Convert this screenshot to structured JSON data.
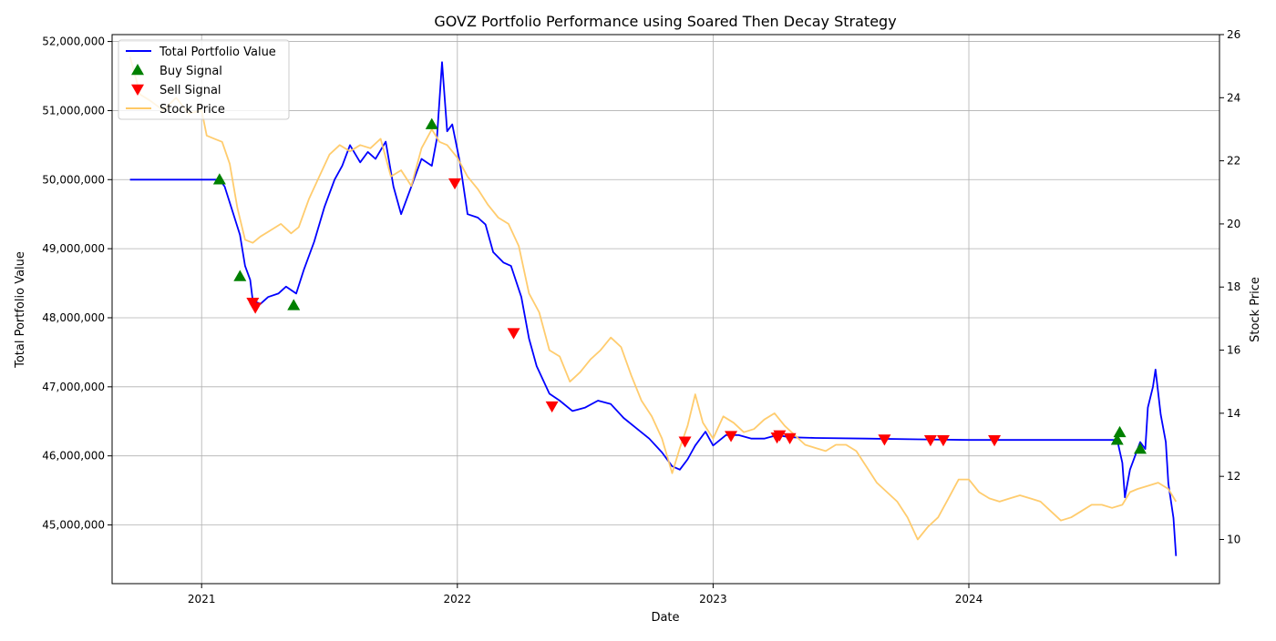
{
  "chart_data": {
    "type": "line",
    "title": "GOVZ Portfolio Performance using Soared Then Decay Strategy",
    "xlabel": "Date",
    "ylabel": "Total Portfolio Value",
    "y2label": "Stock Price",
    "xlim": [
      2020.65,
      2024.98
    ],
    "ylim": [
      44150000,
      52100000
    ],
    "y2lim": [
      8.6,
      26.0
    ],
    "x_ticks": [
      2021,
      2022,
      2023,
      2024
    ],
    "x_tick_labels": [
      "2021",
      "2022",
      "2023",
      "2024"
    ],
    "y_ticks": [
      45000000,
      46000000,
      47000000,
      48000000,
      49000000,
      50000000,
      51000000,
      52000000
    ],
    "y_tick_labels": [
      "45,000,000",
      "46,000,000",
      "47,000,000",
      "48,000,000",
      "49,000,000",
      "50,000,000",
      "51,000,000",
      "52,000,000"
    ],
    "y2_ticks": [
      10,
      12,
      14,
      16,
      18,
      20,
      22,
      24,
      26
    ],
    "y2_tick_labels": [
      "10",
      "12",
      "14",
      "16",
      "18",
      "20",
      "22",
      "24",
      "26"
    ],
    "grid": true,
    "legend_position": "top-left",
    "legend": [
      {
        "label": "Total Portfolio Value",
        "kind": "line",
        "color": "#0000ff"
      },
      {
        "label": "Buy Signal",
        "kind": "triangle-up",
        "color": "#008000"
      },
      {
        "label": "Sell Signal",
        "kind": "triangle-down",
        "color": "#ff0000"
      },
      {
        "label": "Stock Price",
        "kind": "line",
        "color": "#ffc966"
      }
    ],
    "colors": {
      "portfolio": "#0000ff",
      "stock": "#ffc966",
      "buy": "#008000",
      "sell": "#ff0000"
    },
    "series": [
      {
        "name": "Total Portfolio Value",
        "axis": "left",
        "x": [
          2020.72,
          2020.9,
          2021.05,
          2021.07,
          2021.09,
          2021.12,
          2021.15,
          2021.17,
          2021.19,
          2021.2,
          2021.23,
          2021.26,
          2021.3,
          2021.33,
          2021.37,
          2021.4,
          2021.44,
          2021.48,
          2021.52,
          2021.55,
          2021.58,
          2021.62,
          2021.65,
          2021.68,
          2021.72,
          2021.75,
          2021.78,
          2021.82,
          2021.86,
          2021.9,
          2021.92,
          2021.94,
          2021.96,
          2021.98,
          2022.01,
          2022.04,
          2022.08,
          2022.11,
          2022.14,
          2022.18,
          2022.21,
          2022.25,
          2022.28,
          2022.31,
          2022.36,
          2022.4,
          2022.45,
          2022.5,
          2022.55,
          2022.6,
          2022.65,
          2022.7,
          2022.75,
          2022.8,
          2022.84,
          2022.87,
          2022.9,
          2022.93,
          2022.97,
          2023.0,
          2023.05,
          2023.1,
          2023.15,
          2023.2,
          2023.25,
          2023.3,
          2023.4,
          2023.6,
          2023.8,
          2024.0,
          2024.3,
          2024.58,
          2024.6,
          2024.61,
          2024.63,
          2024.65,
          2024.67,
          2024.69,
          2024.7,
          2024.72,
          2024.73,
          2024.75,
          2024.77,
          2024.78,
          2024.8,
          2024.81
        ],
        "values": [
          50000000,
          50000000,
          50000000,
          50000000,
          49900000,
          49550000,
          49200000,
          48750000,
          48550000,
          48250000,
          48200000,
          48300000,
          48350000,
          48450000,
          48350000,
          48700000,
          49100000,
          49600000,
          50000000,
          50200000,
          50500000,
          50250000,
          50400000,
          50300000,
          50550000,
          49900000,
          49500000,
          49900000,
          50300000,
          50200000,
          50600000,
          51700000,
          50700000,
          50800000,
          50250000,
          49500000,
          49450000,
          49350000,
          48950000,
          48800000,
          48750000,
          48300000,
          47700000,
          47300000,
          46900000,
          46800000,
          46650000,
          46700000,
          46800000,
          46750000,
          46550000,
          46400000,
          46250000,
          46050000,
          45850000,
          45800000,
          45950000,
          46150000,
          46350000,
          46150000,
          46300000,
          46300000,
          46250000,
          46250000,
          46300000,
          46270000,
          46260000,
          46250000,
          46240000,
          46230000,
          46230000,
          46230000,
          45900000,
          45400000,
          45800000,
          46000000,
          46200000,
          46100000,
          46700000,
          47000000,
          47250000,
          46600000,
          46200000,
          45600000,
          45100000,
          44550000
        ]
      },
      {
        "name": "Stock Price",
        "axis": "right",
        "x": [
          2020.72,
          2020.76,
          2020.8,
          2020.85,
          2020.9,
          2020.95,
          2021.0,
          2021.02,
          2021.05,
          2021.08,
          2021.11,
          2021.14,
          2021.17,
          2021.2,
          2021.23,
          2021.27,
          2021.31,
          2021.35,
          2021.38,
          2021.42,
          2021.46,
          2021.5,
          2021.54,
          2021.58,
          2021.62,
          2021.66,
          2021.7,
          2021.74,
          2021.78,
          2021.82,
          2021.86,
          2021.9,
          2021.93,
          2021.96,
          2022.0,
          2022.04,
          2022.08,
          2022.12,
          2022.16,
          2022.2,
          2022.24,
          2022.28,
          2022.32,
          2022.36,
          2022.4,
          2022.44,
          2022.48,
          2022.52,
          2022.56,
          2022.6,
          2022.64,
          2022.68,
          2022.72,
          2022.76,
          2022.8,
          2022.84,
          2022.87,
          2022.9,
          2022.93,
          2022.96,
          2023.0,
          2023.04,
          2023.08,
          2023.12,
          2023.16,
          2023.2,
          2023.24,
          2023.28,
          2023.32,
          2023.36,
          2023.4,
          2023.44,
          2023.48,
          2023.52,
          2023.56,
          2023.6,
          2023.64,
          2023.68,
          2023.72,
          2023.76,
          2023.8,
          2023.84,
          2023.88,
          2023.92,
          2023.96,
          2024.0,
          2024.04,
          2024.08,
          2024.12,
          2024.16,
          2024.2,
          2024.24,
          2024.28,
          2024.32,
          2024.36,
          2024.4,
          2024.44,
          2024.48,
          2024.52,
          2024.56,
          2024.6,
          2024.63,
          2024.66,
          2024.7,
          2024.74,
          2024.78,
          2024.81
        ],
        "values": [
          25.3,
          24.1,
          23.9,
          23.6,
          24.0,
          23.5,
          23.6,
          22.8,
          22.7,
          22.6,
          21.9,
          20.5,
          19.5,
          19.4,
          19.6,
          19.8,
          20.0,
          19.7,
          19.9,
          20.8,
          21.5,
          22.2,
          22.5,
          22.3,
          22.5,
          22.4,
          22.7,
          21.5,
          21.7,
          21.2,
          22.4,
          23.0,
          22.6,
          22.5,
          22.1,
          21.5,
          21.1,
          20.6,
          20.2,
          20.0,
          19.3,
          17.8,
          17.2,
          16.0,
          15.8,
          15.0,
          15.3,
          15.7,
          16.0,
          16.4,
          16.1,
          15.2,
          14.4,
          13.9,
          13.2,
          12.1,
          12.9,
          13.6,
          14.6,
          13.7,
          13.2,
          13.9,
          13.7,
          13.4,
          13.5,
          13.8,
          14.0,
          13.6,
          13.3,
          13.0,
          12.9,
          12.8,
          13.0,
          13.0,
          12.8,
          12.3,
          11.8,
          11.5,
          11.2,
          10.7,
          10.0,
          10.4,
          10.7,
          11.3,
          11.9,
          11.9,
          11.5,
          11.3,
          11.2,
          11.3,
          11.4,
          11.3,
          11.2,
          10.9,
          10.6,
          10.7,
          10.9,
          11.1,
          11.1,
          11.0,
          11.1,
          11.5,
          11.6,
          11.7,
          11.8,
          11.6,
          11.2
        ]
      }
    ],
    "buy_signals": [
      {
        "x": 2021.07,
        "y": 50000000
      },
      {
        "x": 2021.15,
        "y": 48600000
      },
      {
        "x": 2021.36,
        "y": 48180000
      },
      {
        "x": 2021.9,
        "y": 50800000
      },
      {
        "x": 2024.58,
        "y": 46230000
      },
      {
        "x": 2024.59,
        "y": 46340000
      },
      {
        "x": 2024.67,
        "y": 46100000
      }
    ],
    "sell_signals": [
      {
        "x": 2021.2,
        "y": 48220000
      },
      {
        "x": 2021.21,
        "y": 48150000
      },
      {
        "x": 2021.99,
        "y": 49950000
      },
      {
        "x": 2022.22,
        "y": 47780000
      },
      {
        "x": 2022.37,
        "y": 46720000
      },
      {
        "x": 2022.89,
        "y": 46210000
      },
      {
        "x": 2023.07,
        "y": 46290000
      },
      {
        "x": 2023.25,
        "y": 46270000
      },
      {
        "x": 2023.26,
        "y": 46300000
      },
      {
        "x": 2023.3,
        "y": 46260000
      },
      {
        "x": 2023.67,
        "y": 46240000
      },
      {
        "x": 2023.85,
        "y": 46230000
      },
      {
        "x": 2023.9,
        "y": 46230000
      },
      {
        "x": 2024.1,
        "y": 46230000
      }
    ]
  }
}
